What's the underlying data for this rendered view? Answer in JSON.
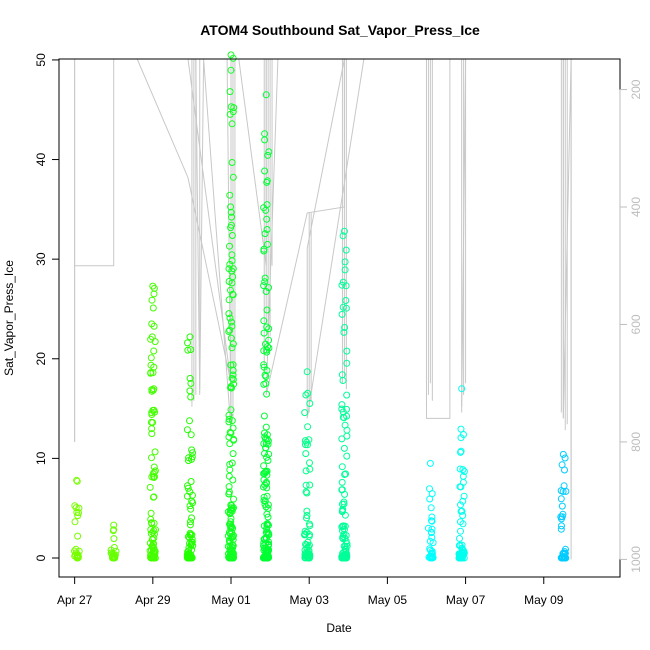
{
  "chart_data": {
    "type": "scatter",
    "title": "ATOM4 Southbound Sat_Vapor_Press_Ice",
    "xlabel": "Date",
    "ylabel": "Sat_Vapor_Press_Ice",
    "x_ticks": [
      "Apr 27",
      "Apr 29",
      "May 01",
      "May 03",
      "May 05",
      "May 07",
      "May 09"
    ],
    "x_range_days": [
      26.6,
      40.95
    ],
    "x_tick_days": [
      27,
      29,
      31,
      33,
      35,
      37,
      39
    ],
    "ylim": [
      0,
      52
    ],
    "y_ticks": [
      0,
      10,
      20,
      30,
      40,
      50
    ],
    "y2_label": "",
    "y2_ticks": [
      200,
      400,
      600,
      800,
      1000
    ],
    "y2_reversed": true,
    "y2_range": [
      148,
      1030
    ],
    "colors": {
      "light_green": "#66ff00",
      "green": "#00ff33",
      "teal": "#00ffaa",
      "cyan": "#00ffff",
      "blue": "#00bbff",
      "pressure_line": "#c8c8c8",
      "right_axis": "#bdbdbd"
    },
    "flight_days": [
      {
        "day": 27.05,
        "color": "#77ff00",
        "max": 7.8
      },
      {
        "day": 28.0,
        "color": "#66ff00",
        "max": 3.3
      },
      {
        "day": 29.0,
        "color": "#44ff00",
        "max": 27.3
      },
      {
        "day": 29.95,
        "color": "#22ff00",
        "max": 22.2
      },
      {
        "day": 31.0,
        "color": "#11ff22",
        "max": 50.5
      },
      {
        "day": 31.9,
        "color": "#00ff33",
        "max": 46.5
      },
      {
        "day": 32.95,
        "color": "#00ff88",
        "max": 18.7
      },
      {
        "day": 33.9,
        "color": "#00ff99",
        "max": 32.8
      },
      {
        "day": 36.1,
        "color": "#00ffff",
        "max": 9.5
      },
      {
        "day": 36.9,
        "color": "#00ffee",
        "max": 17.0
      },
      {
        "day": 39.5,
        "color": "#00ccff",
        "max": 10.4
      }
    ],
    "pressure_path": [
      [
        27.0,
        148
      ],
      [
        27.0,
        800
      ],
      [
        27.0,
        500
      ],
      [
        28.0,
        500
      ],
      [
        28.0,
        148
      ],
      [
        28.6,
        148
      ],
      [
        29.9,
        350
      ],
      [
        31.0,
        700
      ],
      [
        29.9,
        148
      ],
      [
        30.1,
        148
      ],
      [
        30.2,
        720
      ],
      [
        30.3,
        148
      ],
      [
        31.0,
        780
      ],
      [
        30.9,
        148
      ],
      [
        31.2,
        148
      ],
      [
        31.9,
        500
      ],
      [
        31.9,
        148
      ],
      [
        32.2,
        148
      ],
      [
        31.9,
        720
      ],
      [
        32.95,
        410
      ],
      [
        33.9,
        400
      ],
      [
        33.9,
        148
      ],
      [
        32.95,
        470
      ],
      [
        32.95,
        760
      ],
      [
        34.4,
        148
      ],
      [
        35.5,
        148
      ],
      [
        36.0,
        148
      ],
      [
        36.0,
        750
      ],
      [
        36.0,
        760
      ],
      [
        36.6,
        760
      ],
      [
        36.6,
        148
      ],
      [
        37.0,
        148
      ],
      [
        36.9,
        740
      ],
      [
        37.0,
        148
      ],
      [
        39.5,
        148
      ],
      [
        39.5,
        760
      ],
      [
        39.7,
        148
      ],
      [
        39.7,
        1000
      ]
    ],
    "pressure_spikes": [
      {
        "day": 27.0,
        "lo": 148,
        "hi": 800
      },
      {
        "day": 30.0,
        "lo": 148,
        "hi": 740
      },
      {
        "day": 30.05,
        "lo": 148,
        "hi": 730
      },
      {
        "day": 30.1,
        "lo": 148,
        "hi": 720
      },
      {
        "day": 30.2,
        "lo": 148,
        "hi": 710
      },
      {
        "day": 31.0,
        "lo": 148,
        "hi": 780
      },
      {
        "day": 31.05,
        "lo": 148,
        "hi": 760
      },
      {
        "day": 31.1,
        "lo": 148,
        "hi": 700
      },
      {
        "day": 31.85,
        "lo": 148,
        "hi": 680
      },
      {
        "day": 31.9,
        "lo": 148,
        "hi": 600
      },
      {
        "day": 31.95,
        "lo": 148,
        "hi": 650
      },
      {
        "day": 32.0,
        "lo": 148,
        "hi": 620
      },
      {
        "day": 32.05,
        "lo": 148,
        "hi": 500
      },
      {
        "day": 33.0,
        "lo": 410,
        "hi": 750
      },
      {
        "day": 33.05,
        "lo": 410,
        "hi": 730
      },
      {
        "day": 33.85,
        "lo": 148,
        "hi": 700
      },
      {
        "day": 33.9,
        "lo": 148,
        "hi": 690
      },
      {
        "day": 33.95,
        "lo": 148,
        "hi": 710
      },
      {
        "day": 36.0,
        "lo": 148,
        "hi": 740
      },
      {
        "day": 36.05,
        "lo": 148,
        "hi": 720
      },
      {
        "day": 36.1,
        "lo": 148,
        "hi": 700
      },
      {
        "day": 36.15,
        "lo": 148,
        "hi": 730
      },
      {
        "day": 36.9,
        "lo": 148,
        "hi": 750
      },
      {
        "day": 36.95,
        "lo": 148,
        "hi": 720
      },
      {
        "day": 37.0,
        "lo": 148,
        "hi": 700
      },
      {
        "day": 39.45,
        "lo": 148,
        "hi": 750
      },
      {
        "day": 39.5,
        "lo": 148,
        "hi": 760
      },
      {
        "day": 39.55,
        "lo": 148,
        "hi": 780
      },
      {
        "day": 39.6,
        "lo": 148,
        "hi": 770
      },
      {
        "day": 39.7,
        "lo": 148,
        "hi": 900
      }
    ]
  }
}
